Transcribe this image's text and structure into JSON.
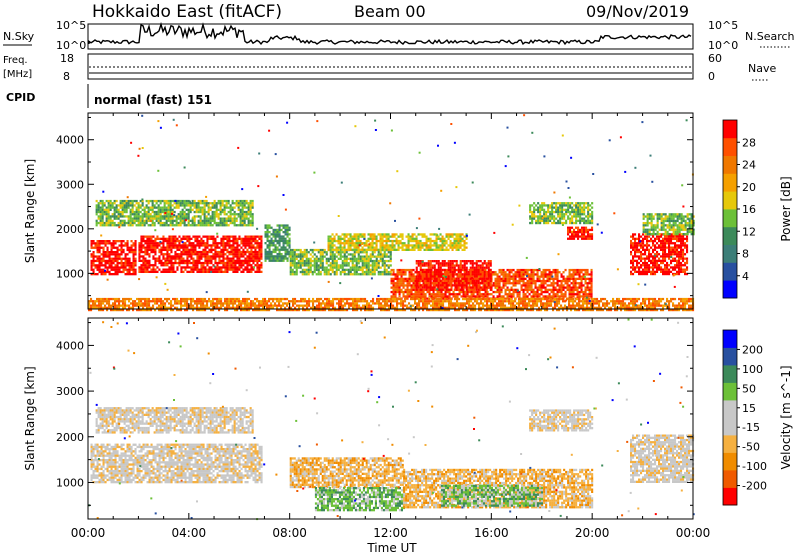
{
  "header": {
    "title": "Hokkaido East (fitACF)",
    "beam": "Beam 00",
    "date": "09/Nov/2019"
  },
  "top_panels": {
    "nsky_label": "N.Sky",
    "nsky_ticks": [
      "10^5",
      "10^0"
    ],
    "nsearch_label": "N.Search",
    "nsearch_ticks": [
      "10^5",
      "10^0"
    ],
    "freq_label": "Freq.",
    "freq_unit": "[MHz]",
    "freq_ticks": [
      "18",
      "8"
    ],
    "nave_label": "Nave",
    "nave_ticks": [
      "60",
      "0"
    ],
    "cpid_label": "CPID",
    "cpid_value": "normal (fast) 151"
  },
  "chart_data": [
    {
      "type": "heatmap",
      "name": "power",
      "ylabel": "Slant Range [km]",
      "yticks": [
        "4000",
        "3000",
        "2000",
        "1000"
      ],
      "ylim": [
        200,
        4600
      ],
      "xlim": [
        0,
        24
      ],
      "colorbar_label": "Power [dB]",
      "colorbar_ticks": [
        "28",
        "24",
        "20",
        "16",
        "12",
        "8",
        "4"
      ],
      "colorbar_colors": [
        "#0000ff",
        "#2850a0",
        "#3c7e78",
        "#3c8a5a",
        "#6cc038",
        "#e6c80a",
        "#f5a000",
        "#f07800",
        "#ff5000",
        "#ff0000"
      ],
      "regions": [
        {
          "t": [
            0.1,
            1.9
          ],
          "r": [
            1000,
            1750
          ],
          "level": 9
        },
        {
          "t": [
            2.0,
            6.9
          ],
          "r": [
            1050,
            1850
          ],
          "level": 9
        },
        {
          "t": [
            0.3,
            6.5
          ],
          "r": [
            2100,
            2650
          ],
          "level": 4
        },
        {
          "t": [
            7.0,
            8.0
          ],
          "r": [
            1300,
            2100
          ],
          "level": 3
        },
        {
          "t": [
            8.0,
            12.0
          ],
          "r": [
            1000,
            1550
          ],
          "level": 4
        },
        {
          "t": [
            9.5,
            15.0
          ],
          "r": [
            1550,
            1900
          ],
          "level": 5
        },
        {
          "t": [
            12.0,
            20.0
          ],
          "r": [
            450,
            1100
          ],
          "level": 8
        },
        {
          "t": [
            13.0,
            16.0
          ],
          "r": [
            650,
            1300
          ],
          "level": 9
        },
        {
          "t": [
            19.0,
            20.0
          ],
          "r": [
            1800,
            2050
          ],
          "level": 9
        },
        {
          "t": [
            17.5,
            20.0
          ],
          "r": [
            2150,
            2600
          ],
          "level": 4
        },
        {
          "t": [
            21.5,
            23.8
          ],
          "r": [
            1000,
            1900
          ],
          "level": 9
        },
        {
          "t": [
            22.0,
            24.0
          ],
          "r": [
            1900,
            2350
          ],
          "level": 4
        },
        {
          "t": [
            0.0,
            24.0
          ],
          "r": [
            200,
            450
          ],
          "level": 7
        }
      ]
    },
    {
      "type": "heatmap",
      "name": "velocity",
      "ylabel": "Slant Range [km]",
      "yticks": [
        "4000",
        "3000",
        "2000",
        "1000"
      ],
      "ylim": [
        200,
        4600
      ],
      "xlim": [
        0,
        24
      ],
      "colorbar_label": "Velocity [m s^-1]",
      "colorbar_ticks": [
        "200",
        "100",
        "50",
        "15",
        "-15",
        "-50",
        "-100",
        "-200"
      ],
      "colorbar_colors": [
        "#ff0000",
        "#f05a00",
        "#f08c00",
        "#f5b040",
        "#c8c8c8",
        "#c8c8c8",
        "#6cc038",
        "#3c8a5a",
        "#2850a0",
        "#0000ff"
      ],
      "regions": [
        {
          "t": [
            0.1,
            6.9
          ],
          "r": [
            1000,
            1850
          ],
          "level": 4
        },
        {
          "t": [
            0.3,
            6.5
          ],
          "r": [
            2100,
            2650
          ],
          "level": 4
        },
        {
          "t": [
            8.0,
            12.5
          ],
          "r": [
            900,
            1550
          ],
          "level": 3
        },
        {
          "t": [
            9.0,
            12.5
          ],
          "r": [
            400,
            900
          ],
          "level": 6
        },
        {
          "t": [
            12.5,
            20.0
          ],
          "r": [
            450,
            1300
          ],
          "level": 3
        },
        {
          "t": [
            14.0,
            18.0
          ],
          "r": [
            500,
            950
          ],
          "level": 6
        },
        {
          "t": [
            17.5,
            20.0
          ],
          "r": [
            2150,
            2600
          ],
          "level": 4
        },
        {
          "t": [
            21.5,
            24.0
          ],
          "r": [
            1000,
            2050
          ],
          "level": 4
        }
      ]
    }
  ],
  "xaxis": {
    "ticks": [
      "00:00",
      "04:00",
      "08:00",
      "12:00",
      "16:00",
      "20:00",
      "00:00"
    ],
    "label": "Time UT"
  }
}
